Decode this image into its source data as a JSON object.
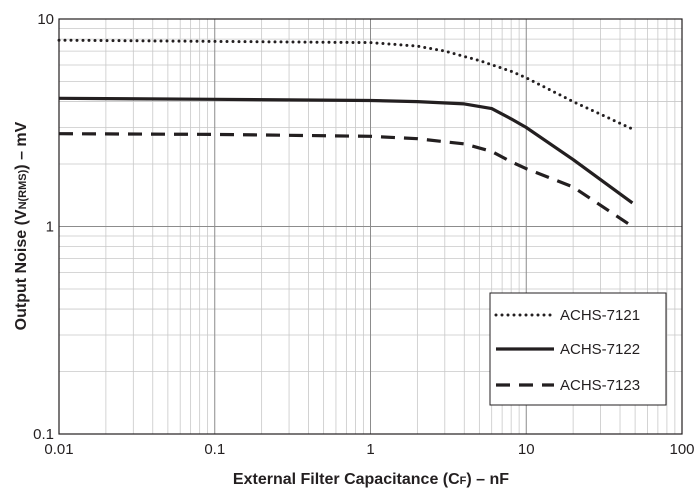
{
  "chart_data": {
    "type": "line",
    "xscale": "log",
    "yscale": "log",
    "xlim": [
      0.01,
      100
    ],
    "ylim": [
      0.1,
      10
    ],
    "grid": true,
    "xlabel": {
      "prefix": "External Filter Capacitance (C",
      "sub": "F",
      "suffix": ") – nF"
    },
    "ylabel": {
      "prefix": "Output Noise (V",
      "sub": "N(RMS)",
      "suffix": ") – mV"
    },
    "x_ticks": [
      {
        "value": 0.01,
        "label": "0.01"
      },
      {
        "value": 0.1,
        "label": "0.1"
      },
      {
        "value": 1,
        "label": "1"
      },
      {
        "value": 10,
        "label": "10"
      },
      {
        "value": 100,
        "label": "100"
      }
    ],
    "y_ticks": [
      {
        "value": 0.1,
        "label": "0.1"
      },
      {
        "value": 1,
        "label": "1"
      },
      {
        "value": 10,
        "label": "10"
      }
    ],
    "legend_position": "lower-right",
    "series": [
      {
        "name": "ACHS-7121",
        "style": "dotted",
        "x": [
          0.01,
          0.1,
          1,
          2,
          3,
          5,
          8,
          10,
          20,
          48
        ],
        "y": [
          7.9,
          7.8,
          7.7,
          7.4,
          7.0,
          6.3,
          5.6,
          5.2,
          4.0,
          2.95
        ]
      },
      {
        "name": "ACHS-7122",
        "style": "solid",
        "x": [
          0.01,
          0.1,
          1,
          2,
          4,
          6,
          8,
          10,
          20,
          48
        ],
        "y": [
          4.15,
          4.1,
          4.05,
          4.0,
          3.9,
          3.7,
          3.3,
          3.0,
          2.1,
          1.3
        ]
      },
      {
        "name": "ACHS-7123",
        "style": "dashed",
        "x": [
          0.01,
          0.1,
          1,
          2,
          4,
          6,
          8,
          10,
          20,
          48
        ],
        "y": [
          2.8,
          2.78,
          2.72,
          2.65,
          2.5,
          2.3,
          2.05,
          1.9,
          1.55,
          1.0
        ]
      }
    ]
  }
}
